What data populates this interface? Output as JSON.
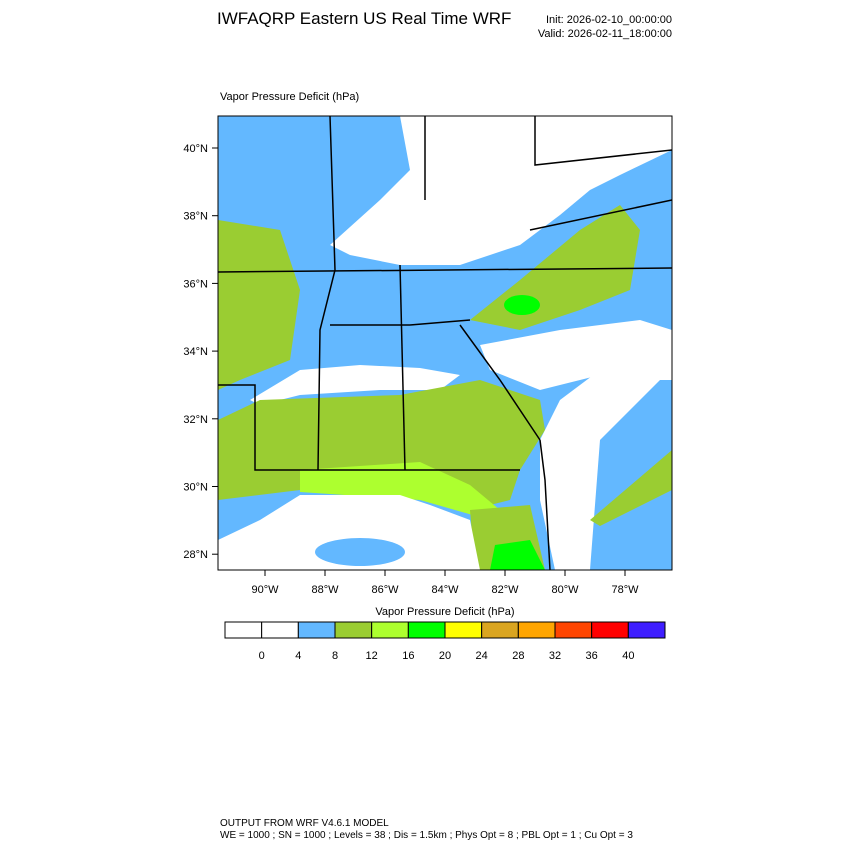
{
  "title": "IWFAQRP Eastern US Real Time WRF",
  "init": "Init: 2026-02-10_00:00:00",
  "valid": "Valid: 2026-02-11_18:00:00",
  "map": {
    "label": "Vapor Pressure Deficit   (hPa)",
    "lat_ticks": [
      "40°N",
      "38°N",
      "36°N",
      "34°N",
      "32°N",
      "30°N",
      "28°N"
    ],
    "lon_ticks": [
      "90°W",
      "88°W",
      "86°W",
      "84°W",
      "82°W",
      "80°W",
      "78°W"
    ]
  },
  "colorbar": {
    "title": "Vapor Pressure Deficit  (hPa)",
    "colors": [
      "#ffffff",
      "#ffffff",
      "#63b8ff",
      "#9acd32",
      "#adff2f",
      "#00ff00",
      "#ffff00",
      "#daa520",
      "#ffa500",
      "#ff4500",
      "#ff0000",
      "#3f1eff"
    ],
    "labels": [
      "0",
      "4",
      "8",
      "12",
      "16",
      "20",
      "24",
      "28",
      "32",
      "36",
      "40"
    ]
  },
  "footer": {
    "line1": "OUTPUT FROM WRF V4.6.1 MODEL",
    "line2": "WE = 1000 ; SN = 1000 ; Levels = 38 ; Dis = 1.5km ; Phys Opt = 8 ; PBL Opt = 1 ; Cu Opt = 3"
  }
}
